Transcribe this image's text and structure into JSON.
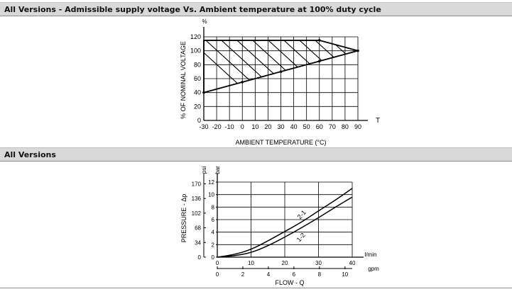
{
  "sections": [
    {
      "title": "All Versions - Admissible supply voltage Vs. Ambient temperature at 100% duty cycle"
    },
    {
      "title": "All Versions"
    }
  ],
  "chart_data": [
    {
      "type": "area",
      "title": "",
      "xlabel": "AMBIENT TEMPERATURE (°C)",
      "ylabel": "% OF NOMINAL VOLTAGE",
      "y_unit": "%",
      "x_axis_symbol": "T",
      "xlim": [
        -30,
        90
      ],
      "ylim": [
        0,
        120
      ],
      "x_ticks": [
        -30,
        -20,
        -10,
        0,
        10,
        20,
        30,
        40,
        50,
        60,
        70,
        80,
        90
      ],
      "y_ticks": [
        0,
        20,
        40,
        60,
        80,
        100,
        120
      ],
      "grid": true,
      "series": [
        {
          "x": [
            -30,
            60,
            90
          ],
          "y": [
            115,
            115,
            100
          ]
        },
        {
          "x": [
            -30,
            90
          ],
          "y": [
            40,
            100
          ]
        },
        {
          "x": [
            -30,
            -30
          ],
          "y": [
            40,
            115
          ]
        }
      ]
    },
    {
      "type": "line",
      "title": "",
      "xlabel": "FLOW - Q",
      "ylabel": "PRESSURE - Δp",
      "primary_x_unit": "l/min",
      "secondary_x_unit": "gpm",
      "primary_y_unit": "bar",
      "secondary_y_unit": "psi",
      "xlim": [
        0,
        40
      ],
      "ylim": [
        0,
        12
      ],
      "x_ticks": [
        0,
        10,
        20,
        30,
        40
      ],
      "y_ticks": [
        0,
        2,
        4,
        6,
        8,
        10,
        12
      ],
      "gpm_ticks": [
        0,
        2,
        4,
        6,
        8,
        10
      ],
      "psi_ticks": [
        0,
        34,
        68,
        102,
        136,
        170
      ],
      "grid": true,
      "series": [
        {
          "name": "2-1",
          "x": [
            0,
            5,
            10,
            15,
            20,
            25,
            30,
            35,
            40
          ],
          "y": [
            0,
            0.4,
            1.2,
            2.6,
            4.1,
            5.6,
            7.4,
            9.1,
            11.0
          ]
        },
        {
          "name": "1-2",
          "x": [
            0,
            5,
            10,
            15,
            20,
            25,
            30,
            35,
            40
          ],
          "y": [
            0,
            0.2,
            0.7,
            1.8,
            3.2,
            4.7,
            6.3,
            8.0,
            9.6
          ]
        }
      ]
    }
  ]
}
